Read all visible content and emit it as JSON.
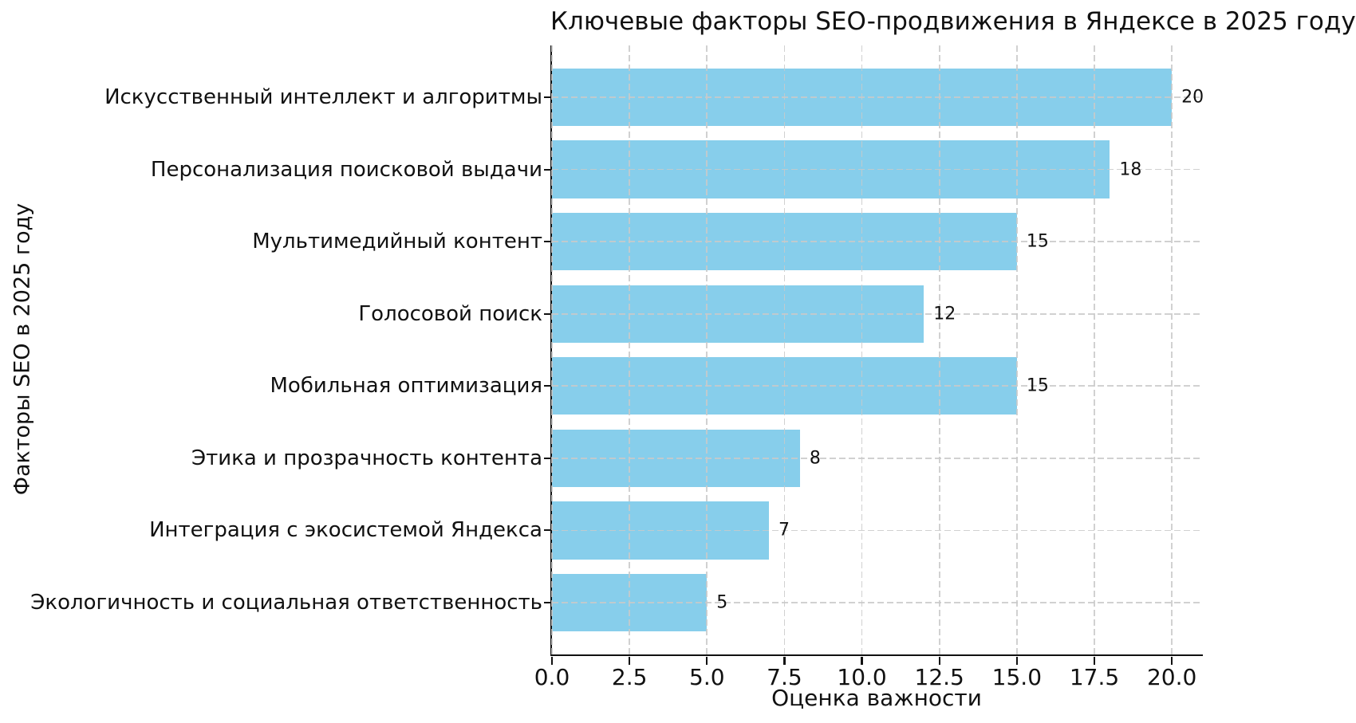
{
  "chart_data": {
    "type": "bar",
    "orientation": "horizontal",
    "title": "Ключевые факторы SEO-продвижения в Яндексе в 2025 году",
    "xlabel": "Оценка важности",
    "ylabel": "Факторы SEO в 2025 году",
    "categories": [
      "Искусственный интеллект и алгоритмы",
      "Персонализация поисковой выдачи",
      "Мультимедийный контент",
      "Голосовой поиск",
      "Мобильная оптимизация",
      "Этика и прозрачность контента",
      "Интеграция с экосистемой Яндекса",
      "Экологичность и социальная ответственность"
    ],
    "values": [
      20,
      18,
      15,
      12,
      15,
      8,
      7,
      5
    ],
    "value_labels": [
      "20",
      "18",
      "15",
      "12",
      "15",
      "8",
      "7",
      "5"
    ],
    "xlim": [
      0,
      21
    ],
    "xticks": [
      0,
      2.5,
      5,
      7.5,
      10,
      12.5,
      15,
      17.5,
      20
    ],
    "xtick_labels": [
      "0.0",
      "2.5",
      "5.0",
      "7.5",
      "10.0",
      "12.5",
      "15.0",
      "17.5",
      "20.0"
    ],
    "bar_color": "#87CEEB",
    "grid": true,
    "grid_style": "dashed",
    "grid_color": "#c9c9c9",
    "legend_position": "none",
    "background_color": "#ffffff"
  }
}
